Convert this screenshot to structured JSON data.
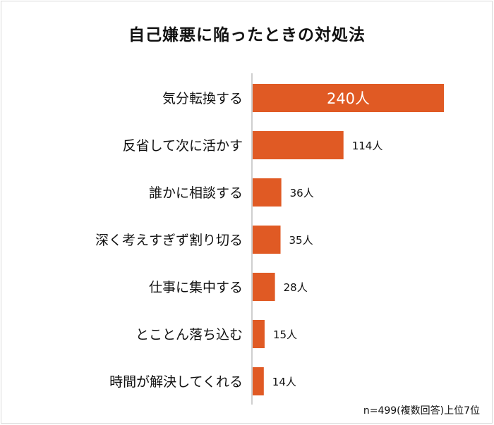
{
  "chart_data": {
    "type": "bar",
    "orientation": "horizontal",
    "title": "自己嫌悪に陥ったときの対処法",
    "categories": [
      "気分転換する",
      "反省して次に活かす",
      "誰かに相談する",
      "深く考えすぎず割り切る",
      "仕事に集中する",
      "とことん落ち込む",
      "時間が解決してくれる"
    ],
    "values": [
      240,
      114,
      36,
      35,
      28,
      15,
      14
    ],
    "data_labels": [
      "240人",
      "114人",
      "36人",
      "35人",
      "28人",
      "15人",
      "14人"
    ],
    "xlim": [
      0,
      240
    ],
    "grid": false,
    "bar_color": "#e05a24",
    "note": "n=499(複数回答)上位7位"
  }
}
